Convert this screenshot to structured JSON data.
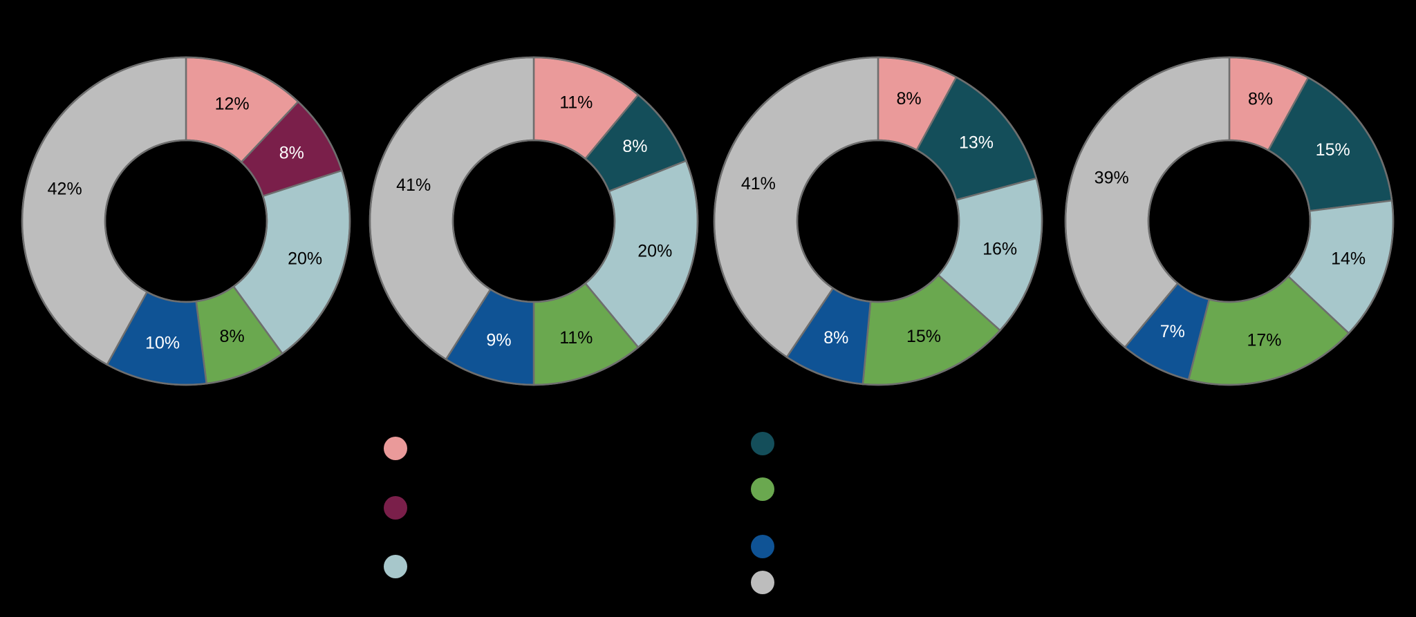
{
  "chart_data": [
    {
      "type": "pie",
      "donut": true,
      "categories": [
        "",
        "",
        "",
        "",
        "",
        ""
      ],
      "colors": [
        "#ea9a9a",
        "#7a1f4a",
        "#a7c7cb",
        "#6aa84f",
        "#0f5395",
        "#bdbdbd"
      ],
      "values": [
        12,
        8,
        20,
        8,
        10,
        42
      ],
      "labels": [
        "12%",
        "8%",
        "20%",
        "8%",
        "10%",
        "42%"
      ],
      "label_colors": [
        "#000000",
        "#ffffff",
        "#000000",
        "#000000",
        "#ffffff",
        "#000000"
      ]
    },
    {
      "type": "pie",
      "donut": true,
      "categories": [
        "",
        "",
        "",
        "",
        "",
        ""
      ],
      "colors": [
        "#ea9a9a",
        "#144e5a",
        "#a7c7cb",
        "#6aa84f",
        "#0f5395",
        "#bdbdbd"
      ],
      "values": [
        11,
        8,
        20,
        11,
        9,
        41
      ],
      "labels": [
        "11%",
        "8%",
        "20%",
        "11%",
        "9%",
        "41%"
      ],
      "label_colors": [
        "#000000",
        "#ffffff",
        "#000000",
        "#000000",
        "#ffffff",
        "#000000"
      ]
    },
    {
      "type": "pie",
      "donut": true,
      "categories": [
        "",
        "",
        "",
        "",
        "",
        ""
      ],
      "colors": [
        "#ea9a9a",
        "#144e5a",
        "#a7c7cb",
        "#6aa84f",
        "#0f5395",
        "#bdbdbd"
      ],
      "values": [
        8,
        13,
        16,
        15,
        8,
        41
      ],
      "labels": [
        "8%",
        "13%",
        "16%",
        "15%",
        "8%",
        "41%"
      ],
      "label_colors": [
        "#000000",
        "#ffffff",
        "#000000",
        "#000000",
        "#ffffff",
        "#000000"
      ]
    },
    {
      "type": "pie",
      "donut": true,
      "categories": [
        "",
        "",
        "",
        "",
        "",
        ""
      ],
      "colors": [
        "#ea9a9a",
        "#144e5a",
        "#a7c7cb",
        "#6aa84f",
        "#0f5395",
        "#bdbdbd"
      ],
      "values": [
        8,
        15,
        14,
        17,
        7,
        39
      ],
      "labels": [
        "8%",
        "15%",
        "14%",
        "17%",
        "7%",
        "39%"
      ],
      "label_colors": [
        "#000000",
        "#ffffff",
        "#000000",
        "#000000",
        "#ffffff",
        "#000000"
      ]
    }
  ],
  "legend": {
    "items": [
      {
        "label": "",
        "color": "#ea9a9a"
      },
      {
        "label": "",
        "color": "#7a1f4a"
      },
      {
        "label": "",
        "color": "#a7c7cb"
      },
      {
        "label": "",
        "color": "#144e5a"
      },
      {
        "label": "",
        "color": "#6aa84f"
      },
      {
        "label": "",
        "color": "#0f5395"
      },
      {
        "label": "",
        "color": "#bdbdbd"
      }
    ]
  }
}
